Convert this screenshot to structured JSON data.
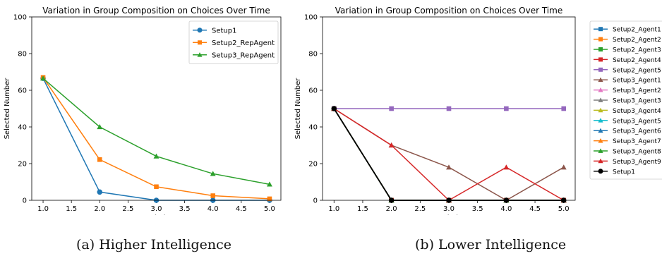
{
  "captions": {
    "a": "(a) Higher Intelligence",
    "b": "(b) Lower Intelligence"
  },
  "chart_data": [
    {
      "type": "line",
      "title": "Variation in Group Composition on Choices Over Time",
      "xlabel": "Periods",
      "ylabel": "Selected Number",
      "xlim": [
        0.8,
        5.2
      ],
      "ylim": [
        0,
        100
      ],
      "xticks": [
        "1.0",
        "1.5",
        "2.0",
        "2.5",
        "3.0",
        "3.5",
        "4.0",
        "4.5",
        "5.0"
      ],
      "yticks": [
        "0",
        "20",
        "40",
        "60",
        "80",
        "100"
      ],
      "legend_position": "top-right",
      "x": [
        1,
        2,
        3,
        4,
        5
      ],
      "series": [
        {
          "name": "Setup1",
          "values": [
            66.5,
            4.5,
            0.0,
            0.0,
            0.0
          ],
          "color": "#1f77b4",
          "marker": "circle"
        },
        {
          "name": "Setup2_RepAgent",
          "values": [
            67.0,
            22.2,
            7.4,
            2.5,
            0.8
          ],
          "color": "#ff7f0e",
          "marker": "square"
        },
        {
          "name": "Setup3_RepAgent",
          "values": [
            66.5,
            40.0,
            24.0,
            14.5,
            8.7
          ],
          "color": "#2ca02c",
          "marker": "triangle"
        }
      ]
    },
    {
      "type": "line",
      "title": "Variation in Group Composition on Choices Over Time",
      "xlabel": "Periods",
      "ylabel": "Selected Number",
      "xlim": [
        0.8,
        5.2
      ],
      "ylim": [
        0,
        100
      ],
      "xticks": [
        "1.0",
        "1.5",
        "2.0",
        "2.5",
        "3.0",
        "3.5",
        "4.0",
        "4.5",
        "5.0"
      ],
      "yticks": [
        "0",
        "20",
        "40",
        "60",
        "80",
        "100"
      ],
      "legend_position": "outside-right",
      "x": [
        1,
        2,
        3,
        4,
        5
      ],
      "series": [
        {
          "name": "Setup2_Agent1",
          "values": [
            50,
            0,
            0,
            0,
            0
          ],
          "color": "#1f77b4",
          "marker": "square"
        },
        {
          "name": "Setup2_Agent2",
          "values": [
            50,
            0,
            0,
            0,
            0
          ],
          "color": "#ff7f0e",
          "marker": "square"
        },
        {
          "name": "Setup2_Agent3",
          "values": [
            50,
            0,
            0,
            0,
            0
          ],
          "color": "#2ca02c",
          "marker": "square"
        },
        {
          "name": "Setup2_Agent4",
          "values": [
            50,
            0,
            0,
            0,
            0
          ],
          "color": "#d62728",
          "marker": "square"
        },
        {
          "name": "Setup2_Agent5",
          "values": [
            50,
            50,
            50,
            50,
            50
          ],
          "color": "#9467bd",
          "marker": "square"
        },
        {
          "name": "Setup3_Agent1",
          "values": [
            50,
            30,
            18,
            0,
            18
          ],
          "color": "#8c564b",
          "marker": "triangle"
        },
        {
          "name": "Setup3_Agent2",
          "values": [
            50,
            0,
            0,
            0,
            0
          ],
          "color": "#e377c2",
          "marker": "triangle"
        },
        {
          "name": "Setup3_Agent3",
          "values": [
            50,
            0,
            0,
            0,
            0
          ],
          "color": "#7f7f7f",
          "marker": "triangle"
        },
        {
          "name": "Setup3_Agent4",
          "values": [
            50,
            0,
            0,
            0,
            0
          ],
          "color": "#bcbd22",
          "marker": "triangle"
        },
        {
          "name": "Setup3_Agent5",
          "values": [
            50,
            0,
            0,
            0,
            0
          ],
          "color": "#17becf",
          "marker": "triangle"
        },
        {
          "name": "Setup3_Agent6",
          "values": [
            50,
            0,
            0,
            0,
            0
          ],
          "color": "#1f77b4",
          "marker": "triangle"
        },
        {
          "name": "Setup3_Agent7",
          "values": [
            50,
            0,
            0,
            0,
            0
          ],
          "color": "#ff7f0e",
          "marker": "triangle"
        },
        {
          "name": "Setup3_Agent8",
          "values": [
            50,
            0,
            0,
            0,
            0
          ],
          "color": "#2ca02c",
          "marker": "triangle"
        },
        {
          "name": "Setup3_Agent9",
          "values": [
            50,
            30,
            0,
            18,
            0
          ],
          "color": "#d62728",
          "marker": "triangle"
        },
        {
          "name": "Setup1",
          "values": [
            50,
            0,
            0,
            0,
            0
          ],
          "color": "#000000",
          "marker": "circle"
        }
      ]
    }
  ]
}
